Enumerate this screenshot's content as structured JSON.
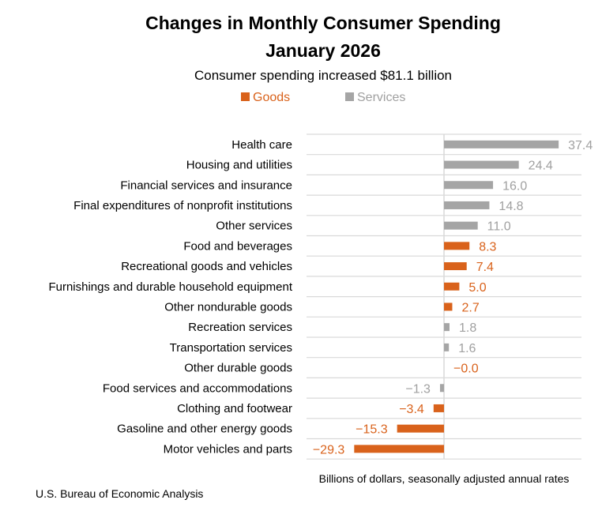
{
  "chart_data": {
    "type": "bar",
    "orientation": "horizontal",
    "title": "Changes in Monthly Consumer Spending",
    "title_line2": "January 2026",
    "subtitle": "Consumer spending increased $81.1 billion",
    "xlabel": "Billions of dollars, seasonally adjusted annual rates",
    "source": "U.S. Bureau of Economic Analysis",
    "legend": [
      {
        "name": "Goods",
        "color": "#d9621b"
      },
      {
        "name": "Services",
        "color": "#a5a5a5"
      }
    ],
    "legend_placement": "top",
    "grid": "horizontal",
    "xlim": [
      -45,
      45
    ],
    "categories": [
      {
        "label": "Health care",
        "value": 37.4,
        "value_label": "37.4",
        "series": "Services"
      },
      {
        "label": "Housing and utilities",
        "value": 24.4,
        "value_label": "24.4",
        "series": "Services"
      },
      {
        "label": "Financial services and insurance",
        "value": 16.0,
        "value_label": "16.0",
        "series": "Services"
      },
      {
        "label": "Final expenditures of nonprofit institutions",
        "value": 14.8,
        "value_label": "14.8",
        "series": "Services"
      },
      {
        "label": "Other services",
        "value": 11.0,
        "value_label": "11.0",
        "series": "Services"
      },
      {
        "label": "Food and beverages",
        "value": 8.3,
        "value_label": "8.3",
        "series": "Goods"
      },
      {
        "label": "Recreational goods and vehicles",
        "value": 7.4,
        "value_label": "7.4",
        "series": "Goods"
      },
      {
        "label": "Furnishings and durable household equipment",
        "value": 5.0,
        "value_label": "5.0",
        "series": "Goods"
      },
      {
        "label": "Other nondurable goods",
        "value": 2.7,
        "value_label": "2.7",
        "series": "Goods"
      },
      {
        "label": "Recreation services",
        "value": 1.8,
        "value_label": "1.8",
        "series": "Services"
      },
      {
        "label": "Transportation services",
        "value": 1.6,
        "value_label": "1.6",
        "series": "Services"
      },
      {
        "label": "Other durable goods",
        "value": -0.0,
        "value_label": "−0.0",
        "series": "Goods"
      },
      {
        "label": "Food services and accommodations",
        "value": -1.3,
        "value_label": "−1.3",
        "series": "Services"
      },
      {
        "label": "Clothing and footwear",
        "value": -3.4,
        "value_label": "−3.4",
        "series": "Goods"
      },
      {
        "label": "Gasoline and other energy goods",
        "value": -15.3,
        "value_label": "−15.3",
        "series": "Goods"
      },
      {
        "label": "Motor vehicles and parts",
        "value": -29.3,
        "value_label": "−29.3",
        "series": "Goods"
      }
    ]
  }
}
